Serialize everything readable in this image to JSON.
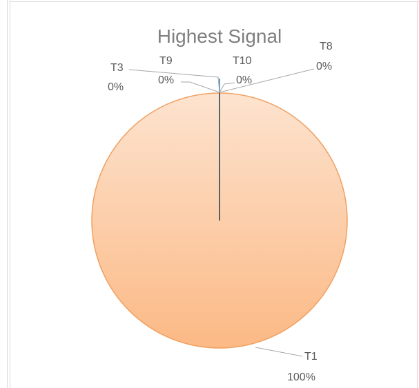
{
  "chart_data": {
    "type": "pie",
    "title": "Highest Signal",
    "slices": [
      {
        "name": "T1",
        "percent_label": "100%",
        "value": 100,
        "color": "#fbc49a"
      },
      {
        "name": "T3",
        "percent_label": "0%",
        "value": 0,
        "color": "#5aa0c8"
      },
      {
        "name": "T9",
        "percent_label": "0%",
        "value": 0,
        "color": "#5aa0c8"
      },
      {
        "name": "T10",
        "percent_label": "0%",
        "value": 0,
        "color": "#5aa0c8"
      },
      {
        "name": "T8",
        "percent_label": "0%",
        "value": 0,
        "color": "#5aa0c8"
      }
    ],
    "legend": "none",
    "colors": {
      "pie_fill_light": "#fde3cf",
      "pie_fill_dark": "#fbb985",
      "pie_border": "#f0a060",
      "radius_line": "#1f3b4d",
      "leader_line": "#a6a6a6",
      "frame_border": "#d9d9d9"
    }
  }
}
